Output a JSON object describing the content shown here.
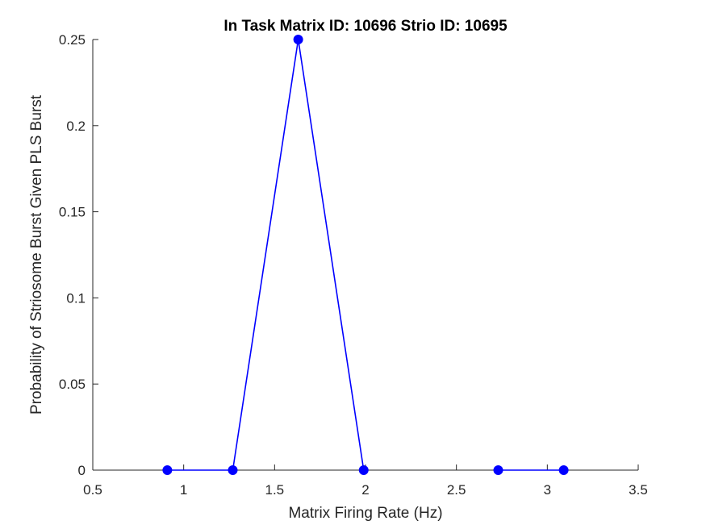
{
  "chart_data": {
    "type": "line",
    "title": "In Task Matrix ID: 10696 Strio ID: 10695",
    "xlabel": "Matrix Firing Rate (Hz)",
    "ylabel": "Probability of Striosome Burst Given PLS Burst",
    "xlim": [
      0.5,
      3.5
    ],
    "ylim": [
      0,
      0.25
    ],
    "x_ticks": [
      "0.5",
      "1",
      "1.5",
      "2",
      "2.5",
      "3",
      "3.5"
    ],
    "y_ticks": [
      "0",
      "0.05",
      "0.1",
      "0.15",
      "0.2",
      "0.25"
    ],
    "grid": false,
    "series": [
      {
        "color": "#0000ff",
        "segments": [
          [
            {
              "x": 0.91,
              "y": 0
            },
            {
              "x": 1.27,
              "y": 0
            },
            {
              "x": 1.63,
              "y": 0.25
            },
            {
              "x": 1.99,
              "y": 0
            }
          ],
          [
            {
              "x": 2.73,
              "y": 0
            },
            {
              "x": 3.09,
              "y": 0
            }
          ]
        ]
      }
    ]
  }
}
